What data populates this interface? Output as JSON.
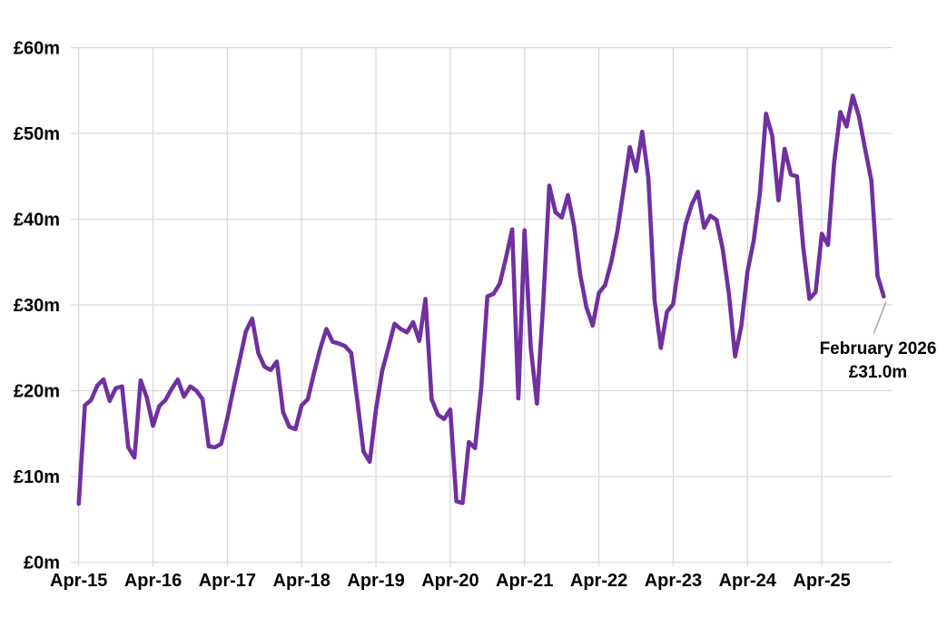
{
  "page": {
    "background": "#ffffff"
  },
  "annotation": {
    "line1": "February 2026",
    "line2": "£31.0m"
  },
  "colors": {
    "line": "#7030A0",
    "gridline": "#D9D9D9",
    "text": "#000000",
    "leader_line": "#A6A6A6"
  },
  "chart_data": {
    "type": "line",
    "title": "",
    "xlabel": "",
    "ylabel": "",
    "grid": true,
    "legend": "none",
    "ylim": [
      0,
      60
    ],
    "y_tick_step": 10,
    "y_tick_labels": [
      "£0m",
      "£10m",
      "£20m",
      "£30m",
      "£40m",
      "£50m",
      "£60m"
    ],
    "x_tick_labels": [
      "Apr-15",
      "Apr-16",
      "Apr-17",
      "Apr-18",
      "Apr-19",
      "Apr-20",
      "Apr-21",
      "Apr-22",
      "Apr-23",
      "Apr-24",
      "Apr-25"
    ],
    "x_tick_month_indices": [
      0,
      12,
      24,
      36,
      48,
      60,
      72,
      84,
      96,
      108,
      120
    ],
    "months": [
      "Apr-15",
      "May-15",
      "Jun-15",
      "Jul-15",
      "Aug-15",
      "Sep-15",
      "Oct-15",
      "Nov-15",
      "Dec-15",
      "Jan-16",
      "Feb-16",
      "Mar-16",
      "Apr-16",
      "May-16",
      "Jun-16",
      "Jul-16",
      "Aug-16",
      "Sep-16",
      "Oct-16",
      "Nov-16",
      "Dec-16",
      "Jan-17",
      "Feb-17",
      "Mar-17",
      "Apr-17",
      "May-17",
      "Jun-17",
      "Jul-17",
      "Aug-17",
      "Sep-17",
      "Oct-17",
      "Nov-17",
      "Dec-17",
      "Jan-18",
      "Feb-18",
      "Mar-18",
      "Apr-18",
      "May-18",
      "Jun-18",
      "Jul-18",
      "Aug-18",
      "Sep-18",
      "Oct-18",
      "Nov-18",
      "Dec-18",
      "Jan-19",
      "Feb-19",
      "Mar-19",
      "Apr-19",
      "May-19",
      "Jun-19",
      "Jul-19",
      "Aug-19",
      "Sep-19",
      "Oct-19",
      "Nov-19",
      "Dec-19",
      "Jan-20",
      "Feb-20",
      "Mar-20",
      "Apr-20",
      "May-20",
      "Jun-20",
      "Jul-20",
      "Aug-20",
      "Sep-20",
      "Oct-20",
      "Nov-20",
      "Dec-20",
      "Jan-21",
      "Feb-21",
      "Mar-21",
      "Apr-21",
      "May-21",
      "Jun-21",
      "Jul-21",
      "Aug-21",
      "Sep-21",
      "Oct-21",
      "Nov-21",
      "Dec-21",
      "Jan-22",
      "Feb-22",
      "Mar-22",
      "Apr-22",
      "May-22",
      "Jun-22",
      "Jul-22",
      "Aug-22",
      "Sep-22",
      "Oct-22",
      "Nov-22",
      "Dec-22",
      "Jan-23",
      "Feb-23",
      "Mar-23",
      "Apr-23",
      "May-23",
      "Jun-23",
      "Jul-23",
      "Aug-23",
      "Sep-23",
      "Oct-23",
      "Nov-23",
      "Dec-23",
      "Jan-24",
      "Feb-24",
      "Mar-24",
      "Apr-24",
      "May-24",
      "Jun-24",
      "Jul-24",
      "Aug-24",
      "Sep-24",
      "Oct-24",
      "Nov-24",
      "Dec-24",
      "Jan-25",
      "Feb-25",
      "Mar-25",
      "Apr-25",
      "May-25",
      "Jun-25",
      "Jul-25",
      "Aug-25",
      "Sep-25",
      "Oct-25",
      "Nov-25",
      "Dec-25",
      "Jan-26",
      "Feb-26"
    ],
    "values": [
      6.8,
      18.3,
      18.9,
      20.6,
      21.3,
      18.8,
      20.3,
      20.5,
      13.4,
      12.2,
      21.2,
      19.2,
      15.9,
      18.2,
      18.9,
      20.2,
      21.3,
      19.3,
      20.5,
      20.0,
      19.0,
      13.5,
      13.4,
      13.8,
      16.8,
      20.3,
      23.6,
      26.9,
      28.4,
      24.4,
      22.8,
      22.4,
      23.4,
      17.5,
      15.8,
      15.5,
      18.3,
      19.0,
      22.1,
      24.9,
      27.2,
      25.7,
      25.5,
      25.2,
      24.4,
      18.8,
      12.9,
      11.7,
      17.8,
      22.3,
      25.0,
      27.8,
      27.2,
      26.8,
      28.0,
      25.8,
      30.7,
      19.0,
      17.2,
      16.7,
      17.8,
      7.1,
      6.9,
      14.0,
      13.3,
      20.3,
      31.0,
      31.3,
      32.5,
      35.5,
      38.8,
      19.1,
      38.7,
      25.0,
      18.5,
      30.0,
      43.9,
      40.8,
      40.2,
      42.8,
      39.2,
      33.5,
      29.7,
      27.6,
      31.4,
      32.3,
      35.0,
      38.6,
      43.5,
      48.4,
      45.6,
      50.2,
      44.8,
      30.5,
      25.0,
      29.2,
      30.1,
      35.2,
      39.4,
      41.7,
      43.2,
      39.0,
      40.4,
      39.9,
      36.5,
      31.3,
      24.0,
      27.5,
      33.9,
      37.5,
      43.0,
      52.3,
      49.7,
      42.2,
      48.2,
      45.2,
      45.0,
      36.8,
      30.7,
      31.5,
      38.3,
      37.0,
      46.6,
      52.5,
      50.8,
      54.4,
      52.0,
      48.2,
      44.5,
      33.4,
      31.0
    ],
    "last_point_label": "February 2026 £31.0m"
  }
}
